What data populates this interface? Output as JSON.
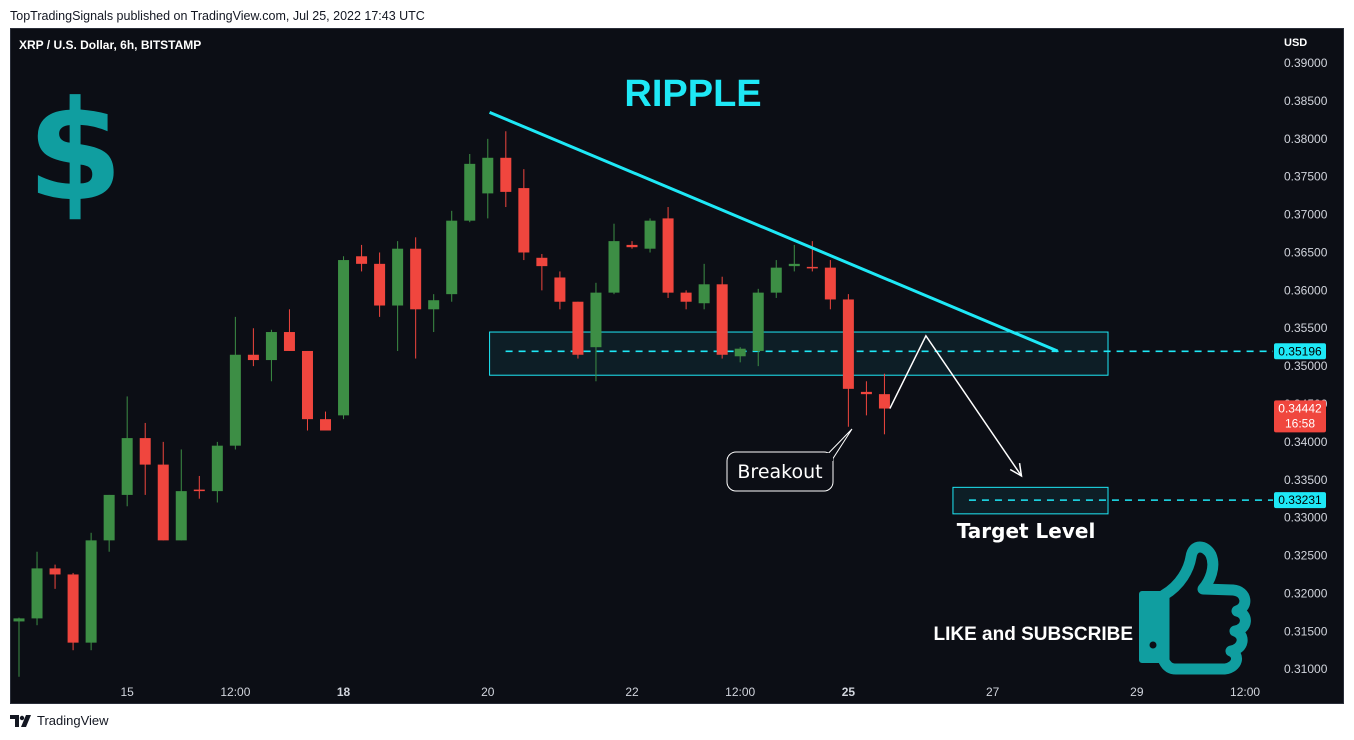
{
  "header": {
    "published_text": "TopTradingSignals published on TradingView.com, Jul 25, 2022 17:43 UTC"
  },
  "footer": {
    "brand": "TradingView",
    "logo_icon": "tradingview-logo-icon"
  },
  "chart_data": {
    "type": "candlestick",
    "symbol_label": "XRP / U.S. Dollar, 6h, BITSTAMP",
    "title": "RIPPLE",
    "currency_label": "USD",
    "ylim": [
      0.3087,
      0.3945
    ],
    "y_ticks": [
      "0.39000",
      "0.38500",
      "0.38000",
      "0.37500",
      "0.37000",
      "0.36500",
      "0.36000",
      "0.35500",
      "0.35000",
      "0.34500",
      "0.34000",
      "0.33500",
      "0.33000",
      "0.32500",
      "0.32000",
      "0.31500",
      "0.31000"
    ],
    "x_ticks": [
      {
        "label": "15",
        "bold": false,
        "index": 6
      },
      {
        "label": "12:00",
        "bold": false,
        "index": 12
      },
      {
        "label": "18",
        "bold": true,
        "index": 18
      },
      {
        "label": "20",
        "bold": false,
        "index": 26
      },
      {
        "label": "22",
        "bold": false,
        "index": 34
      },
      {
        "label": "12:00",
        "bold": false,
        "index": 40
      },
      {
        "label": "25",
        "bold": true,
        "index": 46
      },
      {
        "label": "27",
        "bold": false,
        "index": 54
      },
      {
        "label": "29",
        "bold": false,
        "index": 62
      },
      {
        "label": "12:00",
        "bold": false,
        "index": 68
      }
    ],
    "candles": [
      {
        "o": 0.3163,
        "h": 0.3168,
        "l": 0.309,
        "c": 0.3167
      },
      {
        "o": 0.3167,
        "h": 0.3255,
        "l": 0.3158,
        "c": 0.3233
      },
      {
        "o": 0.3233,
        "h": 0.3238,
        "l": 0.3206,
        "c": 0.3225
      },
      {
        "o": 0.3225,
        "h": 0.3227,
        "l": 0.3125,
        "c": 0.3135
      },
      {
        "o": 0.3135,
        "h": 0.328,
        "l": 0.3125,
        "c": 0.327
      },
      {
        "o": 0.327,
        "h": 0.333,
        "l": 0.3255,
        "c": 0.333
      },
      {
        "o": 0.333,
        "h": 0.346,
        "l": 0.3315,
        "c": 0.3405
      },
      {
        "o": 0.3405,
        "h": 0.3425,
        "l": 0.333,
        "c": 0.337
      },
      {
        "o": 0.337,
        "h": 0.34,
        "l": 0.327,
        "c": 0.327
      },
      {
        "o": 0.327,
        "h": 0.339,
        "l": 0.327,
        "c": 0.3335
      },
      {
        "o": 0.3337,
        "h": 0.3355,
        "l": 0.3325,
        "c": 0.3335
      },
      {
        "o": 0.3335,
        "h": 0.34,
        "l": 0.332,
        "c": 0.3395
      },
      {
        "o": 0.3395,
        "h": 0.3565,
        "l": 0.339,
        "c": 0.3515
      },
      {
        "o": 0.3515,
        "h": 0.355,
        "l": 0.35,
        "c": 0.3508
      },
      {
        "o": 0.3508,
        "h": 0.3548,
        "l": 0.348,
        "c": 0.3545
      },
      {
        "o": 0.3545,
        "h": 0.3575,
        "l": 0.352,
        "c": 0.352
      },
      {
        "o": 0.352,
        "h": 0.352,
        "l": 0.3415,
        "c": 0.343
      },
      {
        "o": 0.343,
        "h": 0.344,
        "l": 0.3415,
        "c": 0.3415
      },
      {
        "o": 0.3435,
        "h": 0.3645,
        "l": 0.343,
        "c": 0.364
      },
      {
        "o": 0.3645,
        "h": 0.366,
        "l": 0.3625,
        "c": 0.3635
      },
      {
        "o": 0.3635,
        "h": 0.365,
        "l": 0.3565,
        "c": 0.358
      },
      {
        "o": 0.358,
        "h": 0.3665,
        "l": 0.352,
        "c": 0.3655
      },
      {
        "o": 0.3655,
        "h": 0.367,
        "l": 0.351,
        "c": 0.3575
      },
      {
        "o": 0.3575,
        "h": 0.3595,
        "l": 0.3545,
        "c": 0.3587
      },
      {
        "o": 0.3595,
        "h": 0.3705,
        "l": 0.3585,
        "c": 0.3692
      },
      {
        "o": 0.3692,
        "h": 0.378,
        "l": 0.369,
        "c": 0.3767
      },
      {
        "o": 0.3728,
        "h": 0.38,
        "l": 0.3695,
        "c": 0.3775
      },
      {
        "o": 0.3775,
        "h": 0.381,
        "l": 0.371,
        "c": 0.373
      },
      {
        "o": 0.3735,
        "h": 0.376,
        "l": 0.364,
        "c": 0.365
      },
      {
        "o": 0.3643,
        "h": 0.3648,
        "l": 0.36,
        "c": 0.3632
      },
      {
        "o": 0.3617,
        "h": 0.3625,
        "l": 0.3575,
        "c": 0.3585
      },
      {
        "o": 0.3585,
        "h": 0.3585,
        "l": 0.351,
        "c": 0.3515
      },
      {
        "o": 0.3525,
        "h": 0.361,
        "l": 0.348,
        "c": 0.3597
      },
      {
        "o": 0.3597,
        "h": 0.3688,
        "l": 0.3595,
        "c": 0.3665
      },
      {
        "o": 0.366,
        "h": 0.3665,
        "l": 0.3655,
        "c": 0.3657
      },
      {
        "o": 0.3655,
        "h": 0.3695,
        "l": 0.365,
        "c": 0.3692
      },
      {
        "o": 0.3695,
        "h": 0.371,
        "l": 0.359,
        "c": 0.3597
      },
      {
        "o": 0.3597,
        "h": 0.36,
        "l": 0.3575,
        "c": 0.3585
      },
      {
        "o": 0.3583,
        "h": 0.3635,
        "l": 0.3575,
        "c": 0.3608
      },
      {
        "o": 0.3608,
        "h": 0.3618,
        "l": 0.351,
        "c": 0.3515
      },
      {
        "o": 0.3513,
        "h": 0.3525,
        "l": 0.3505,
        "c": 0.3523
      },
      {
        "o": 0.352,
        "h": 0.3602,
        "l": 0.35,
        "c": 0.3597
      },
      {
        "o": 0.3597,
        "h": 0.364,
        "l": 0.359,
        "c": 0.363
      },
      {
        "o": 0.3632,
        "h": 0.366,
        "l": 0.3625,
        "c": 0.3635
      },
      {
        "o": 0.3631,
        "h": 0.3665,
        "l": 0.3625,
        "c": 0.3629
      },
      {
        "o": 0.363,
        "h": 0.364,
        "l": 0.3575,
        "c": 0.3588
      },
      {
        "o": 0.3588,
        "h": 0.3595,
        "l": 0.342,
        "c": 0.347
      },
      {
        "o": 0.3466,
        "h": 0.348,
        "l": 0.3435,
        "c": 0.3463
      },
      {
        "o": 0.3463,
        "h": 0.349,
        "l": 0.341,
        "c": 0.3444
      }
    ],
    "trendline": {
      "from": {
        "index": 26.1,
        "price": 0.3835
      },
      "to": {
        "index": 57.6,
        "price": 0.352
      }
    },
    "resistance_zone": {
      "from_index": 26.1,
      "to_index": 60.4,
      "top": 0.3545,
      "bottom": 0.3488,
      "dash_price": 0.35196
    },
    "target_zone": {
      "from_index": 51.8,
      "to_index": 60.4,
      "top": 0.334,
      "bottom": 0.3305,
      "dash_price": 0.33231
    },
    "projection": [
      {
        "index": 48.3,
        "price": 0.3444
      },
      {
        "index": 50.3,
        "price": 0.354
      },
      {
        "index": 55.6,
        "price": 0.3355
      }
    ],
    "price_labels": [
      {
        "value": "0.35196",
        "price": 0.35196,
        "style": "cyan"
      },
      {
        "value": "0.34442",
        "sub": "16:58",
        "price": 0.34442,
        "style": "red"
      },
      {
        "value": "0.33231",
        "price": 0.33231,
        "style": "cyan"
      }
    ],
    "annotations": {
      "breakout": "Breakout",
      "target": "Target Level",
      "cta": "LIKE and SUBSCRIBE",
      "dollar_symbol": "$"
    },
    "icons": {
      "dollar": "dollar-sign-icon",
      "thumbs_up": "thumbs-up-icon"
    },
    "colors": {
      "background": "#0c0e15",
      "bull": "#3d8e45",
      "bear": "#f0463e",
      "cyan": "#1ee8f6",
      "teal": "#109ea0",
      "axis_text": "#d1d4dc"
    }
  }
}
